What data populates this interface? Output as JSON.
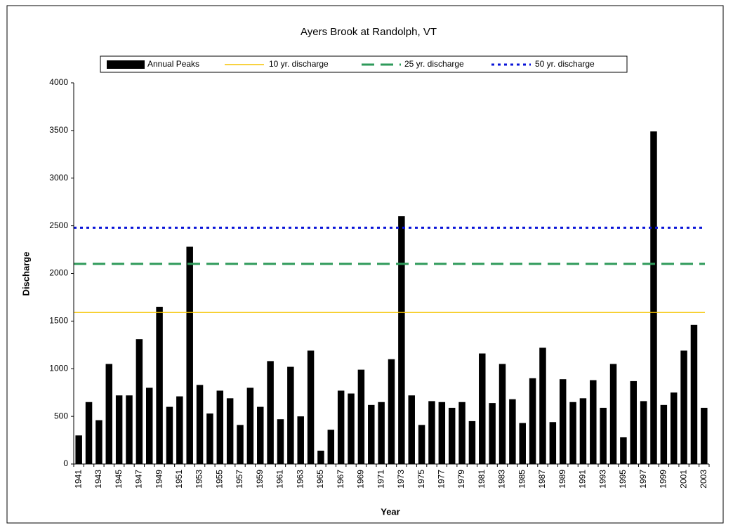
{
  "chart_data": {
    "type": "bar",
    "title": "Ayers Brook at Randolph, VT",
    "x_label": "Year",
    "y_label": "Discharge",
    "categories": [
      "1941",
      null,
      "1943",
      null,
      "1945",
      null,
      "1947",
      null,
      "1949",
      null,
      "1951",
      null,
      "1953",
      null,
      "1955",
      null,
      "1957",
      null,
      "1959",
      null,
      "1961",
      null,
      "1963",
      null,
      "1965",
      null,
      "1967",
      null,
      "1969",
      null,
      "1971",
      null,
      "1973",
      null,
      "1975",
      null,
      "1977",
      null,
      "1979",
      null,
      "1981",
      null,
      "1983",
      null,
      "1985",
      null,
      "1987",
      null,
      "1989",
      null,
      "1991",
      null,
      "1993",
      null,
      "1995",
      null,
      "1997",
      null,
      "1999",
      null,
      "2001",
      null,
      "2003"
    ],
    "series": [
      {
        "name": "Annual Peaks",
        "color": "#000000",
        "values": [
          300,
          650,
          460,
          1050,
          720,
          720,
          1310,
          800,
          1650,
          600,
          710,
          2280,
          830,
          530,
          770,
          690,
          410,
          800,
          600,
          1080,
          470,
          1020,
          500,
          1190,
          140,
          360,
          770,
          740,
          990,
          620,
          650,
          1100,
          2600,
          720,
          410,
          660,
          650,
          590,
          650,
          450,
          1160,
          640,
          1050,
          680,
          430,
          900,
          1220,
          440,
          890,
          650,
          690,
          880,
          590,
          1050,
          280,
          870,
          660,
          3490,
          620,
          750,
          1190,
          1460,
          590
        ]
      }
    ],
    "lines": [
      {
        "name": "10 yr. discharge",
        "color": "#f5c400",
        "value": 1590,
        "style": "solid"
      },
      {
        "name": "25 yr. discharge",
        "color": "#2e9a5a",
        "value": 2100,
        "style": "dashed"
      },
      {
        "name": "50 yr. discharge",
        "color": "#0a14d8",
        "value": 2480,
        "style": "dotted"
      }
    ],
    "ylim": [
      0,
      4000
    ],
    "yticks": [
      0,
      500,
      1000,
      1500,
      2000,
      2500,
      3000,
      3500,
      4000
    ],
    "grid": false
  }
}
